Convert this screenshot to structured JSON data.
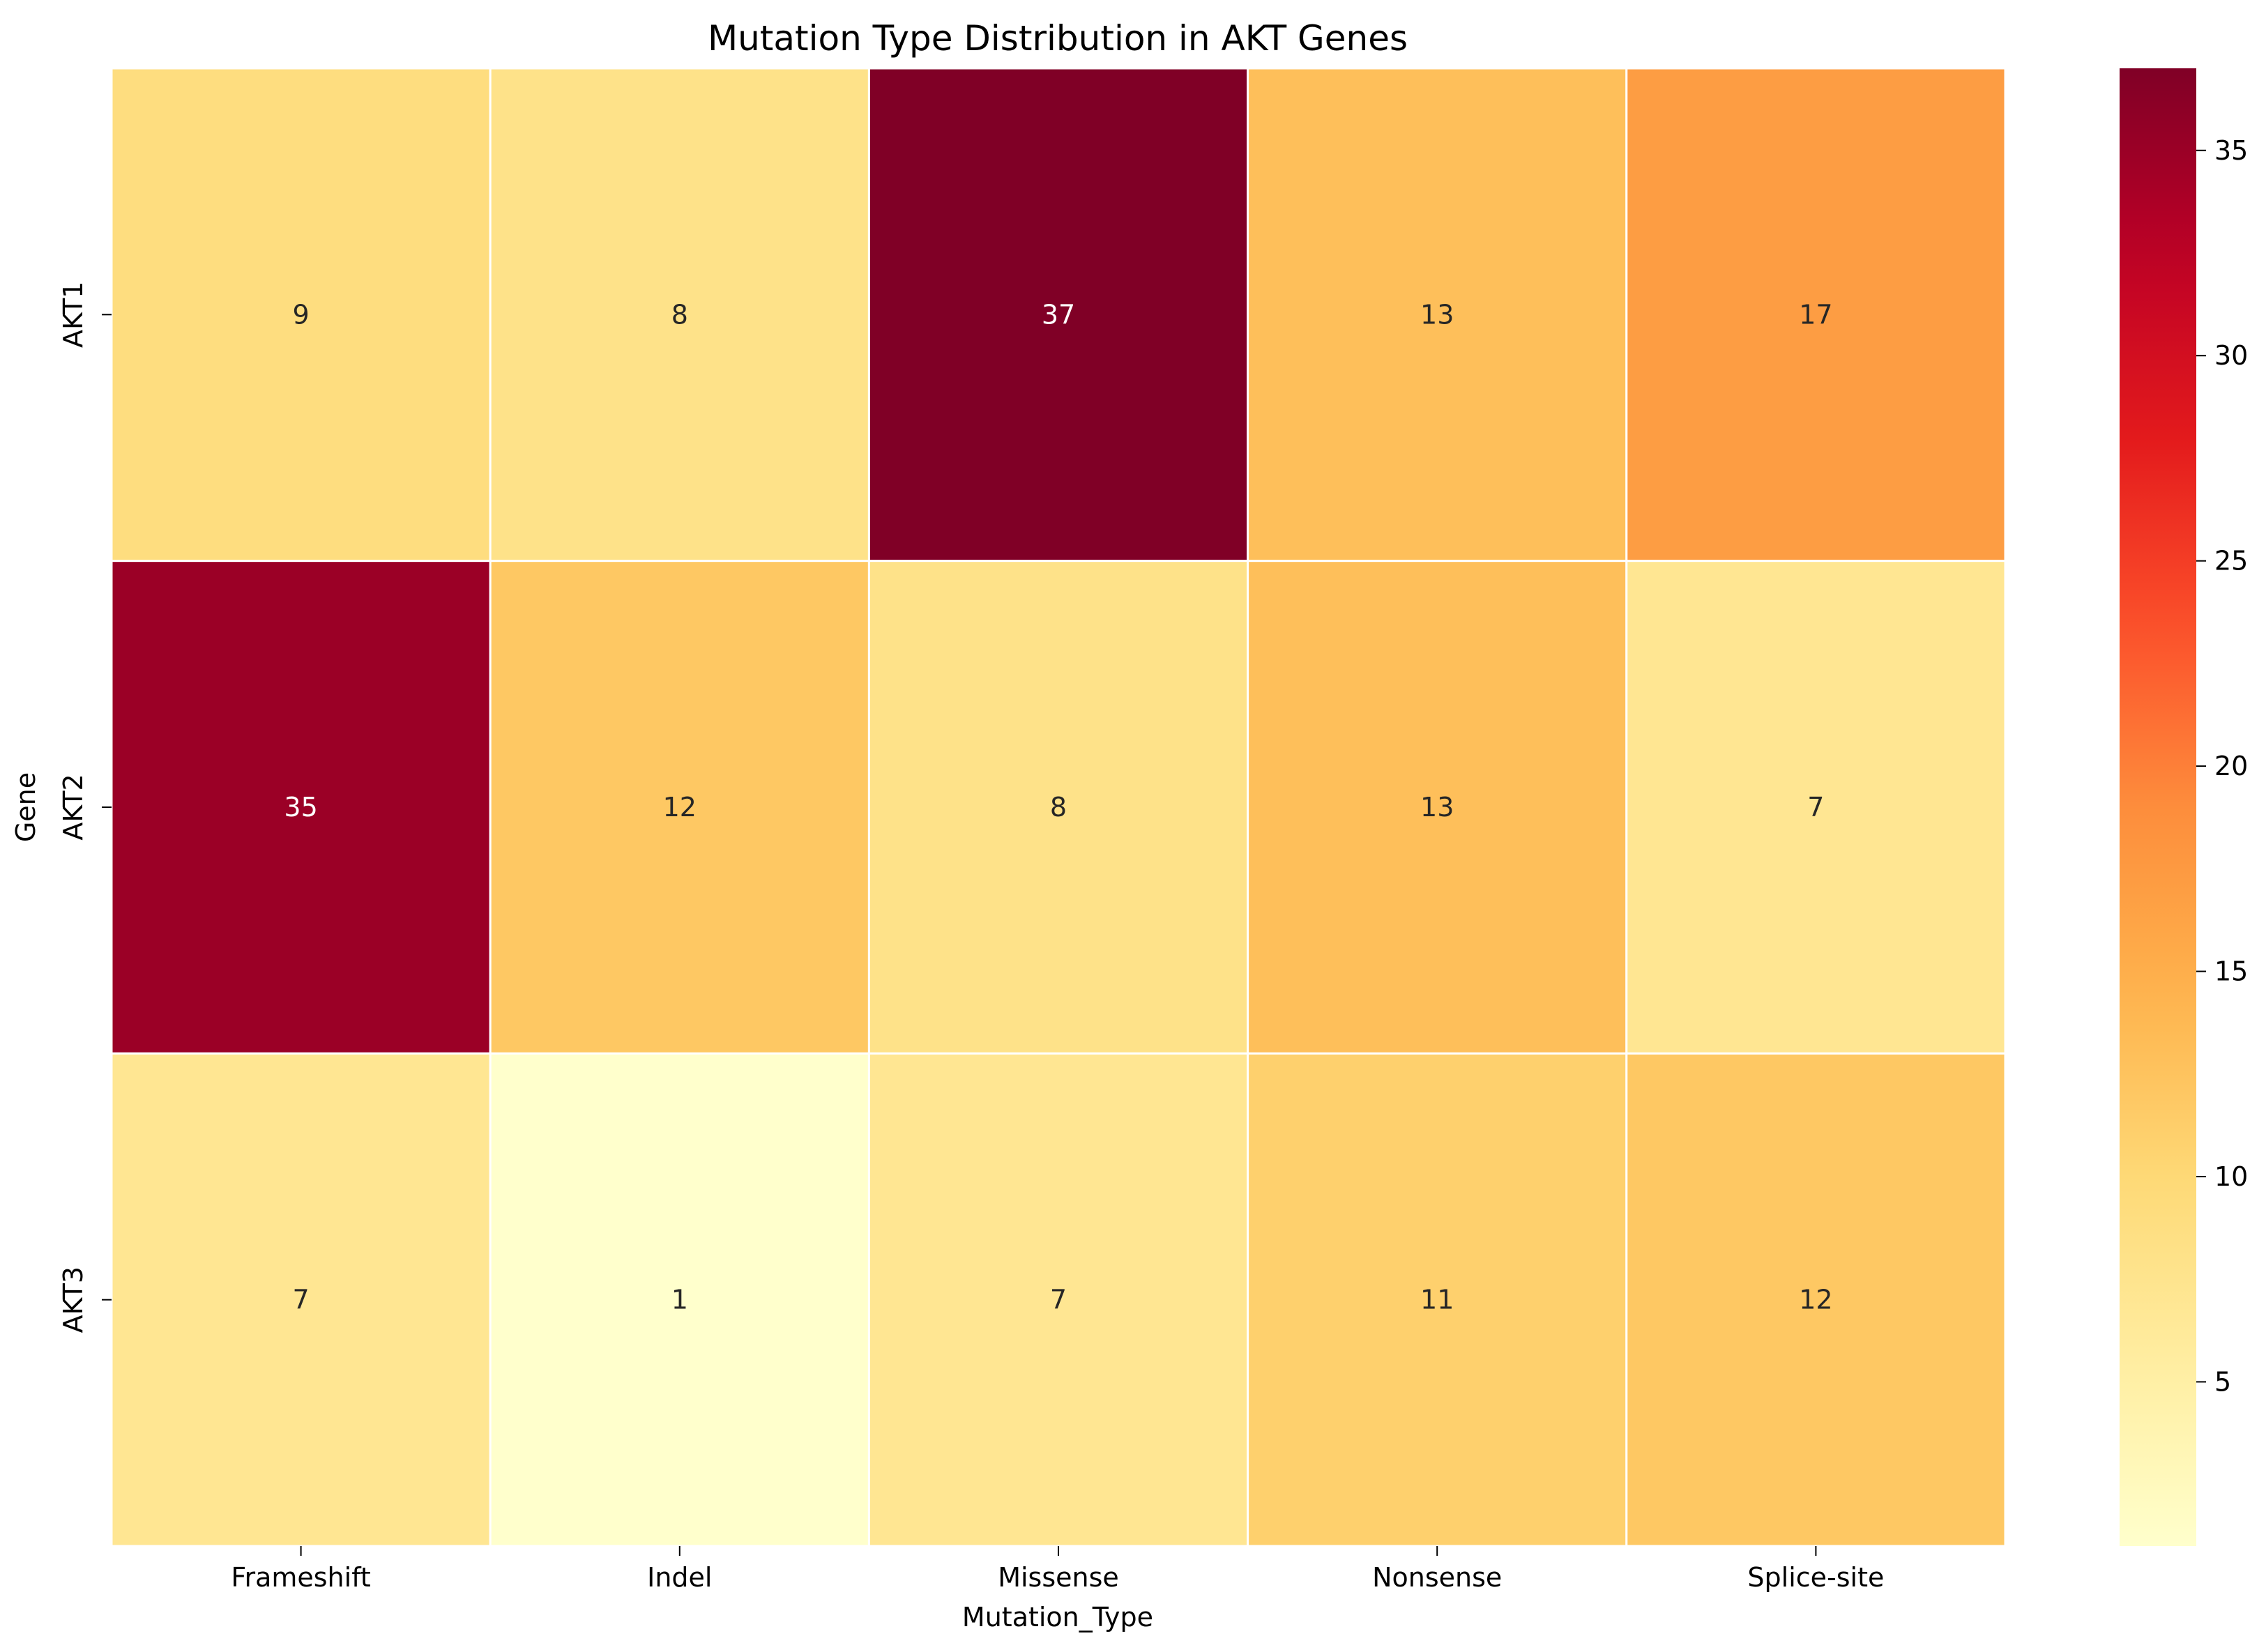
{
  "chart_data": {
    "type": "heatmap",
    "title": "Mutation Type Distribution in AKT Genes",
    "xlabel": "Mutation_Type",
    "ylabel": "Gene",
    "x_categories": [
      "Frameshift",
      "Indel",
      "Missense",
      "Nonsense",
      "Splice-site"
    ],
    "y_categories": [
      "AKT1",
      "AKT2",
      "AKT3"
    ],
    "values": [
      [
        9,
        8,
        37,
        13,
        17
      ],
      [
        35,
        12,
        8,
        13,
        7
      ],
      [
        7,
        1,
        7,
        11,
        12
      ]
    ],
    "colorbar": {
      "min": 1,
      "max": 37,
      "ticks": [
        5,
        10,
        15,
        20,
        25,
        30,
        35
      ],
      "colormap": "YlOrRd"
    }
  }
}
